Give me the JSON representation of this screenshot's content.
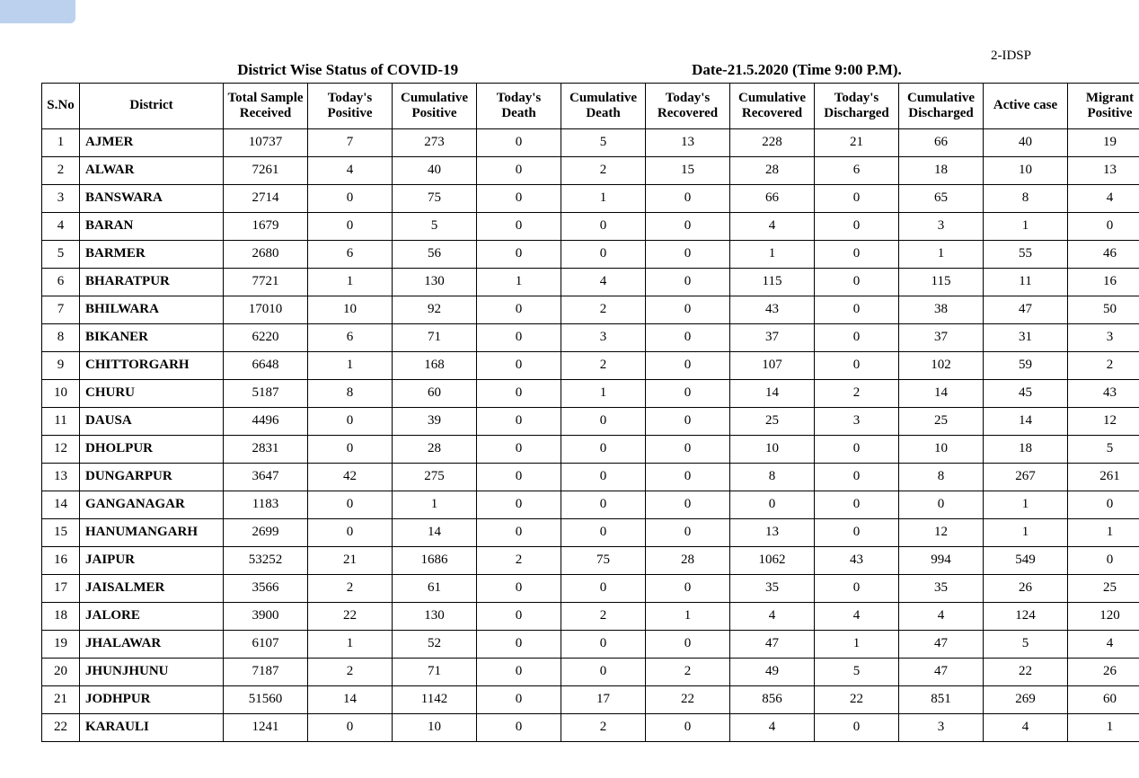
{
  "corner_label": "2-IDSP",
  "title": "District Wise Status of COVID-19",
  "date_line": "Date-21.5.2020 (Time 9:00 P.M).",
  "columns": [
    "S.No",
    "District",
    "Total Sample Received",
    "Today's Positive",
    "Cumulative Positive",
    "Today's Death",
    "Cumulative Death",
    "Today's Recovered",
    "Cumulative Recovered",
    "Today's Discharged",
    "Cumulative Discharged",
    "Active case",
    "Migrant Positive"
  ],
  "rows": [
    [
      "1",
      "AJMER",
      "10737",
      "7",
      "273",
      "0",
      "5",
      "13",
      "228",
      "21",
      "66",
      "40",
      "19"
    ],
    [
      "2",
      "ALWAR",
      "7261",
      "4",
      "40",
      "0",
      "2",
      "15",
      "28",
      "6",
      "18",
      "10",
      "13"
    ],
    [
      "3",
      "BANSWARA",
      "2714",
      "0",
      "75",
      "0",
      "1",
      "0",
      "66",
      "0",
      "65",
      "8",
      "4"
    ],
    [
      "4",
      "BARAN",
      "1679",
      "0",
      "5",
      "0",
      "0",
      "0",
      "4",
      "0",
      "3",
      "1",
      "0"
    ],
    [
      "5",
      "BARMER",
      "2680",
      "6",
      "56",
      "0",
      "0",
      "0",
      "1",
      "0",
      "1",
      "55",
      "46"
    ],
    [
      "6",
      "BHARATPUR",
      "7721",
      "1",
      "130",
      "1",
      "4",
      "0",
      "115",
      "0",
      "115",
      "11",
      "16"
    ],
    [
      "7",
      "BHILWARA",
      "17010",
      "10",
      "92",
      "0",
      "2",
      "0",
      "43",
      "0",
      "38",
      "47",
      "50"
    ],
    [
      "8",
      "BIKANER",
      "6220",
      "6",
      "71",
      "0",
      "3",
      "0",
      "37",
      "0",
      "37",
      "31",
      "3"
    ],
    [
      "9",
      "CHITTORGARH",
      "6648",
      "1",
      "168",
      "0",
      "2",
      "0",
      "107",
      "0",
      "102",
      "59",
      "2"
    ],
    [
      "10",
      "CHURU",
      "5187",
      "8",
      "60",
      "0",
      "1",
      "0",
      "14",
      "2",
      "14",
      "45",
      "43"
    ],
    [
      "11",
      "DAUSA",
      "4496",
      "0",
      "39",
      "0",
      "0",
      "0",
      "25",
      "3",
      "25",
      "14",
      "12"
    ],
    [
      "12",
      "DHOLPUR",
      "2831",
      "0",
      "28",
      "0",
      "0",
      "0",
      "10",
      "0",
      "10",
      "18",
      "5"
    ],
    [
      "13",
      "DUNGARPUR",
      "3647",
      "42",
      "275",
      "0",
      "0",
      "0",
      "8",
      "0",
      "8",
      "267",
      "261"
    ],
    [
      "14",
      "GANGANAGAR",
      "1183",
      "0",
      "1",
      "0",
      "0",
      "0",
      "0",
      "0",
      "0",
      "1",
      "0"
    ],
    [
      "15",
      "HANUMANGARH",
      "2699",
      "0",
      "14",
      "0",
      "0",
      "0",
      "13",
      "0",
      "12",
      "1",
      "1"
    ],
    [
      "16",
      "JAIPUR",
      "53252",
      "21",
      "1686",
      "2",
      "75",
      "28",
      "1062",
      "43",
      "994",
      "549",
      "0"
    ],
    [
      "17",
      "JAISALMER",
      "3566",
      "2",
      "61",
      "0",
      "0",
      "0",
      "35",
      "0",
      "35",
      "26",
      "25"
    ],
    [
      "18",
      "JALORE",
      "3900",
      "22",
      "130",
      "0",
      "2",
      "1",
      "4",
      "4",
      "4",
      "124",
      "120"
    ],
    [
      "19",
      "JHALAWAR",
      "6107",
      "1",
      "52",
      "0",
      "0",
      "0",
      "47",
      "1",
      "47",
      "5",
      "4"
    ],
    [
      "20",
      "JHUNJHUNU",
      "7187",
      "2",
      "71",
      "0",
      "0",
      "2",
      "49",
      "5",
      "47",
      "22",
      "26"
    ],
    [
      "21",
      "JODHPUR",
      "51560",
      "14",
      "1142",
      "0",
      "17",
      "22",
      "856",
      "22",
      "851",
      "269",
      "60"
    ],
    [
      "22",
      "KARAULI",
      "1241",
      "0",
      "10",
      "0",
      "2",
      "0",
      "4",
      "0",
      "3",
      "4",
      "1"
    ]
  ],
  "styling": {
    "font_family": "Times New Roman",
    "header_fontsize_pt": 13,
    "cell_fontsize_pt": 11,
    "border_color": "#000000",
    "background_color": "#ffffff",
    "text_color": "#000000",
    "corner_stub_color": "#bcd1ee"
  }
}
